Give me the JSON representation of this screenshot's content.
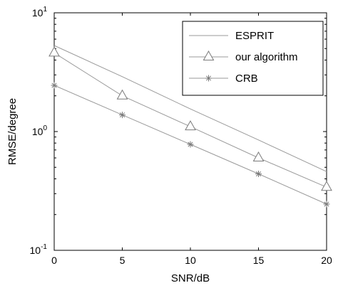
{
  "chart_data": {
    "type": "line",
    "xlabel": "SNR/dB",
    "ylabel": "RMSE/degree",
    "x": [
      0,
      5,
      10,
      15,
      20
    ],
    "xlim": [
      0,
      20
    ],
    "xticks": [
      "0",
      "5",
      "10",
      "15",
      "20"
    ],
    "ylim": [
      0.1,
      10
    ],
    "yscale": "log",
    "yticks": [
      {
        "base": "10",
        "exp": "-1",
        "value": 0.1
      },
      {
        "base": "10",
        "exp": "0",
        "value": 1
      },
      {
        "base": "10",
        "exp": "1",
        "value": 10
      }
    ],
    "grid": false,
    "legend_position": "top-right",
    "series": [
      {
        "name": "ESPRIT",
        "marker": "none",
        "color": "#9a9a9a",
        "values": [
          5.3,
          2.9,
          1.55,
          0.85,
          0.46
        ]
      },
      {
        "name": "our algorithm",
        "marker": "triangle",
        "color": "#9a9a9a",
        "values": [
          4.6,
          2.0,
          1.1,
          0.6,
          0.34
        ]
      },
      {
        "name": "CRB",
        "marker": "star",
        "color": "#9a9a9a",
        "values": [
          2.45,
          1.38,
          0.78,
          0.44,
          0.245
        ]
      }
    ]
  }
}
